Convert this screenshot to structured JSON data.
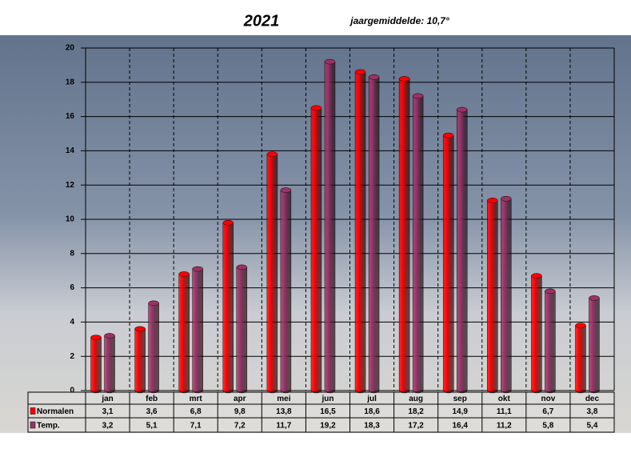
{
  "chart_data": {
    "type": "bar",
    "title": "2021",
    "subtitle": "jaargemiddelde: 10,7°",
    "categories": [
      "jan",
      "feb",
      "mrt",
      "apr",
      "mei",
      "jun",
      "jul",
      "aug",
      "sep",
      "okt",
      "nov",
      "dec"
    ],
    "series": [
      {
        "name": "Normalen",
        "color": "#ff0000",
        "values": [
          3.1,
          3.6,
          6.8,
          9.8,
          13.8,
          16.5,
          18.6,
          18.2,
          14.9,
          11.1,
          6.7,
          3.8
        ],
        "value_labels": [
          "3,1",
          "3,6",
          "6,8",
          "9,8",
          "13,8",
          "16,5",
          "18,6",
          "18,2",
          "14,9",
          "11,1",
          "6,7",
          "3,8"
        ]
      },
      {
        "name": "Temp.",
        "color": "#993366",
        "values": [
          3.2,
          5.1,
          7.1,
          7.2,
          11.7,
          19.2,
          18.3,
          17.2,
          16.4,
          11.2,
          5.8,
          5.4
        ],
        "value_labels": [
          "3,2",
          "5,1",
          "7,1",
          "7,2",
          "11,7",
          "19,2",
          "18,3",
          "17,2",
          "16,4",
          "11,2",
          "5,8",
          "5,4"
        ]
      }
    ],
    "ylim": [
      0,
      20
    ],
    "yticks": [
      0,
      2,
      4,
      6,
      8,
      10,
      12,
      14,
      16,
      18,
      20
    ],
    "grid": true
  }
}
